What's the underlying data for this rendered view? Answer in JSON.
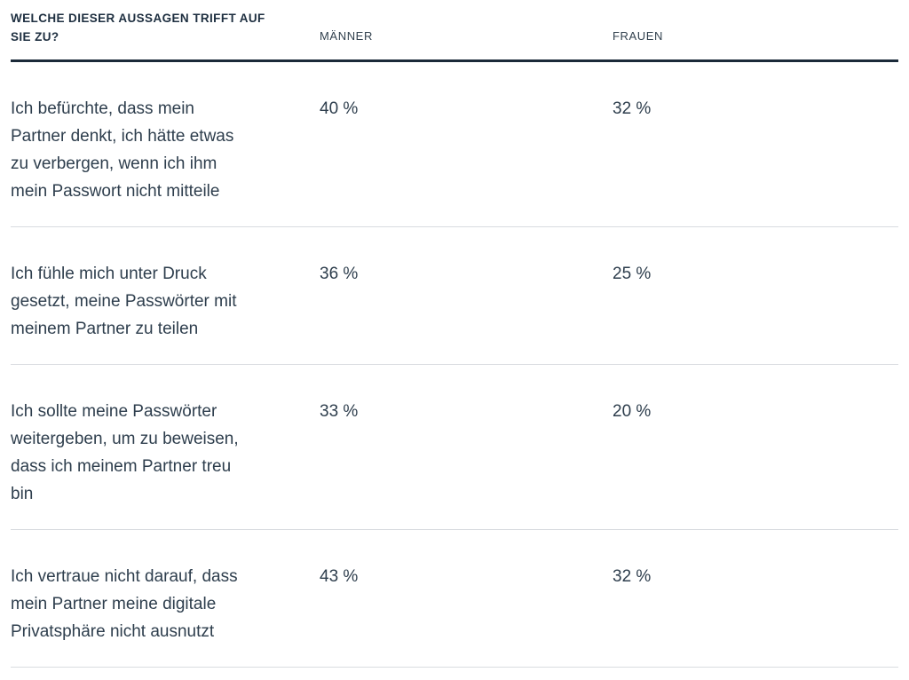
{
  "table": {
    "question": "WELCHE DIESER AUSSAGEN TRIFFT AUF\nSIE ZU?",
    "columns": [
      {
        "label": "MÄNNER"
      },
      {
        "label": "FRAUEN"
      }
    ],
    "rows": [
      {
        "statement": "Ich befürchte, dass mein\nPartner denkt, ich hätte etwas\nzu verbergen, wenn ich ihm\nmein Passwort nicht mitteile",
        "maenner": "40 %",
        "frauen": "32 %"
      },
      {
        "statement": "Ich fühle mich unter Druck\ngesetzt, meine Passwörter mit\nmeinem Partner zu teilen",
        "maenner": "36 %",
        "frauen": "25 %"
      },
      {
        "statement": "Ich sollte meine Passwörter\nweitergeben, um zu beweisen,\ndass ich meinem Partner treu\nbin",
        "maenner": "33 %",
        "frauen": "20 %"
      },
      {
        "statement": "Ich vertraue nicht darauf, dass\nmein Partner meine digitale\nPrivatsphäre nicht ausnutzt",
        "maenner": "43 %",
        "frauen": "32 %"
      }
    ]
  },
  "colors": {
    "text_body": "#2e3e4d",
    "text_title": "#1e2f40",
    "header_rule": "#1b2a39",
    "row_separator": "#d9dce0",
    "background": "#ffffff"
  },
  "chart_data": {
    "type": "table",
    "title": "WELCHE DIESER AUSSAGEN TRIFFT AUF SIE ZU?",
    "categories": [
      "Ich befürchte, dass mein Partner denkt, ich hätte etwas zu verbergen, wenn ich ihm mein Passwort nicht mitteile",
      "Ich fühle mich unter Druck gesetzt, meine Passwörter mit meinem Partner zu teilen",
      "Ich sollte meine Passwörter weitergeben, um zu beweisen, dass ich meinem Partner treu bin",
      "Ich vertraue nicht darauf, dass mein Partner meine digitale Privatsphäre nicht ausnutzt"
    ],
    "series": [
      {
        "name": "MÄNNER",
        "values": [
          40,
          36,
          33,
          43
        ]
      },
      {
        "name": "FRAUEN",
        "values": [
          32,
          25,
          20,
          32
        ]
      }
    ],
    "value_unit": "%"
  }
}
